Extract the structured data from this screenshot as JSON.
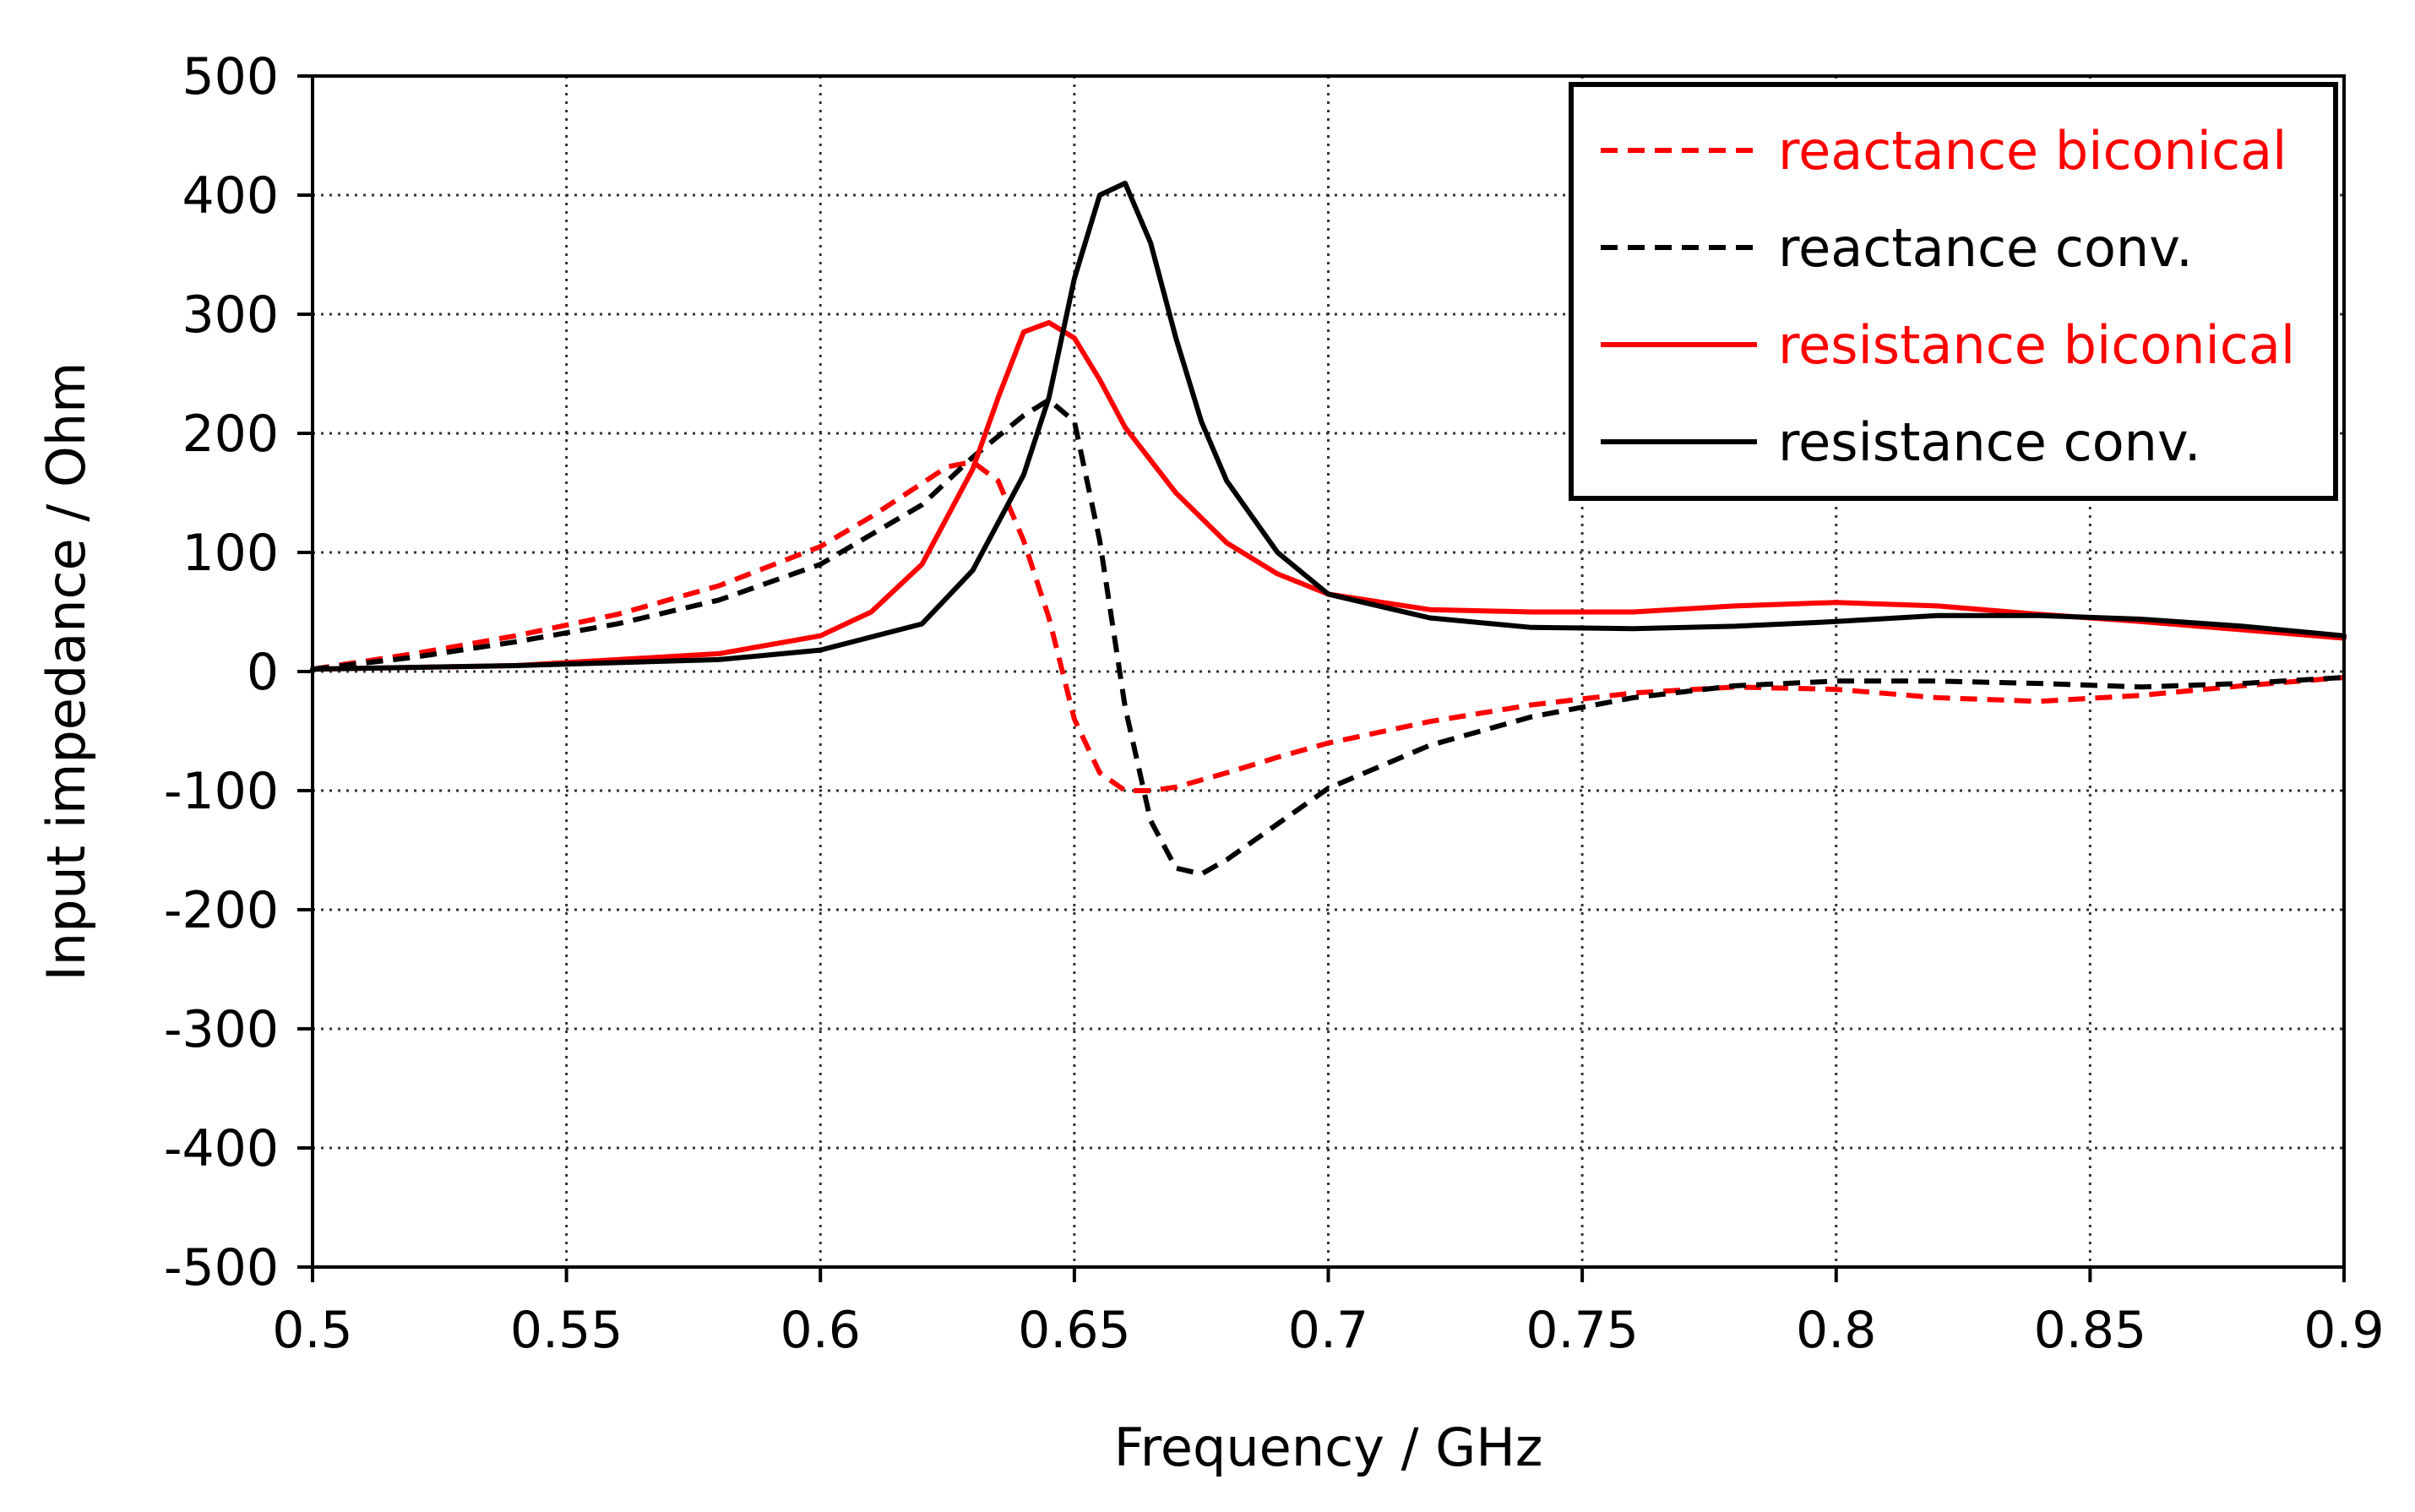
{
  "chart_data": {
    "type": "line",
    "title": "",
    "xlabel": "Frequency / GHz",
    "ylabel": "Input impedance / Ohm",
    "xlim": [
      0.5,
      0.9
    ],
    "ylim": [
      -500,
      500
    ],
    "x_ticks": [
      0.5,
      0.55,
      0.6,
      0.65,
      0.7,
      0.75,
      0.8,
      0.85,
      0.9
    ],
    "x_tick_labels": [
      "0.5",
      "0.55",
      "0.6",
      "0.65",
      "0.7",
      "0.75",
      "0.8",
      "0.85",
      "0.9"
    ],
    "y_ticks": [
      500,
      400,
      300,
      200,
      100,
      0,
      -100,
      -200,
      -300,
      -400,
      -500
    ],
    "y_tick_labels": [
      "500",
      "400",
      "300",
      "200",
      "100",
      "0",
      "-100",
      "-200",
      "-300",
      "-400",
      "-500"
    ],
    "grid": true,
    "legend_position": "top-right",
    "series": [
      {
        "name": "reactance biconical",
        "color": "#ff0000",
        "dash": "dashed",
        "x": [
          0.5,
          0.52,
          0.54,
          0.56,
          0.58,
          0.6,
          0.61,
          0.62,
          0.625,
          0.63,
          0.635,
          0.64,
          0.645,
          0.65,
          0.655,
          0.66,
          0.665,
          0.67,
          0.68,
          0.69,
          0.7,
          0.72,
          0.74,
          0.76,
          0.78,
          0.8,
          0.82,
          0.84,
          0.86,
          0.88,
          0.9
        ],
        "y": [
          2,
          15,
          30,
          48,
          72,
          105,
          130,
          158,
          172,
          176,
          160,
          110,
          45,
          -40,
          -85,
          -100,
          -100,
          -97,
          -85,
          -72,
          -60,
          -42,
          -28,
          -18,
          -13,
          -15,
          -22,
          -25,
          -20,
          -12,
          -5
        ]
      },
      {
        "name": "reactance conv.",
        "color": "#000000",
        "dash": "dashed",
        "x": [
          0.5,
          0.52,
          0.54,
          0.56,
          0.58,
          0.6,
          0.62,
          0.63,
          0.64,
          0.645,
          0.65,
          0.655,
          0.66,
          0.665,
          0.67,
          0.675,
          0.68,
          0.69,
          0.7,
          0.72,
          0.74,
          0.76,
          0.78,
          0.8,
          0.82,
          0.84,
          0.86,
          0.88,
          0.9
        ],
        "y": [
          2,
          12,
          25,
          40,
          60,
          90,
          140,
          180,
          215,
          228,
          210,
          110,
          -30,
          -125,
          -165,
          -170,
          -158,
          -128,
          -98,
          -62,
          -38,
          -22,
          -12,
          -8,
          -8,
          -10,
          -13,
          -10,
          -5
        ]
      },
      {
        "name": "resistance biconical",
        "color": "#ff0000",
        "dash": "solid",
        "x": [
          0.5,
          0.54,
          0.58,
          0.6,
          0.61,
          0.62,
          0.63,
          0.635,
          0.64,
          0.645,
          0.65,
          0.655,
          0.66,
          0.67,
          0.68,
          0.69,
          0.7,
          0.72,
          0.74,
          0.76,
          0.78,
          0.8,
          0.82,
          0.84,
          0.86,
          0.88,
          0.9
        ],
        "y": [
          2,
          5,
          15,
          30,
          50,
          90,
          170,
          230,
          285,
          293,
          280,
          245,
          205,
          150,
          108,
          82,
          65,
          52,
          50,
          50,
          55,
          58,
          55,
          48,
          42,
          35,
          28
        ]
      },
      {
        "name": "resistance conv.",
        "color": "#000000",
        "dash": "solid",
        "x": [
          0.5,
          0.54,
          0.58,
          0.6,
          0.62,
          0.63,
          0.64,
          0.645,
          0.65,
          0.655,
          0.66,
          0.665,
          0.67,
          0.675,
          0.68,
          0.69,
          0.7,
          0.72,
          0.74,
          0.76,
          0.78,
          0.8,
          0.82,
          0.84,
          0.86,
          0.88,
          0.9
        ],
        "y": [
          2,
          5,
          10,
          18,
          40,
          85,
          165,
          230,
          330,
          400,
          410,
          360,
          280,
          210,
          160,
          100,
          65,
          45,
          37,
          36,
          38,
          42,
          47,
          47,
          44,
          38,
          30
        ]
      }
    ]
  }
}
